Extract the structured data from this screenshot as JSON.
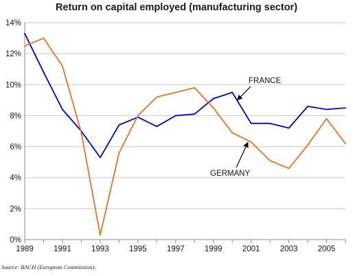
{
  "chart_data": {
    "type": "line",
    "title": "Return on capital employed (manufacturing sector)",
    "xlabel": "",
    "ylabel": "",
    "x": [
      1989,
      1990,
      1991,
      1992,
      1993,
      1994,
      1995,
      1996,
      1997,
      1998,
      1999,
      2000,
      2001,
      2002,
      2003,
      2004,
      2005,
      2006
    ],
    "xlim": [
      1989,
      2006
    ],
    "ylim": [
      0,
      14
    ],
    "x_ticks": [
      "1989",
      "1991",
      "1993",
      "1995",
      "1997",
      "1999",
      "2001",
      "2003",
      "2005"
    ],
    "y_ticks": [
      "0%",
      "2%",
      "4%",
      "6%",
      "8%",
      "10%",
      "12%",
      "14%"
    ],
    "grid": "horizontal",
    "series": [
      {
        "name": "FRANCE",
        "color": "#0000cc",
        "values": [
          13.3,
          10.8,
          8.4,
          7.0,
          5.3,
          7.4,
          7.9,
          7.3,
          8.0,
          8.1,
          9.1,
          9.5,
          7.5,
          7.5,
          7.2,
          8.6,
          8.4,
          8.5
        ]
      },
      {
        "name": "GERMANY",
        "color": "#e8712a",
        "values": [
          12.5,
          13.0,
          11.2,
          6.9,
          0.3,
          5.6,
          8.0,
          9.2,
          9.5,
          9.8,
          8.5,
          6.9,
          6.3,
          5.1,
          4.6,
          6.1,
          7.8,
          6.2
        ]
      }
    ],
    "annotations": [
      {
        "text": "FRANCE",
        "series": "FRANCE",
        "points_to_x": 2000.2
      },
      {
        "text": "GERMANY",
        "series": "GERMANY",
        "points_to_x": 2000.9
      }
    ],
    "source": "Source: BACH (European Commission)."
  }
}
